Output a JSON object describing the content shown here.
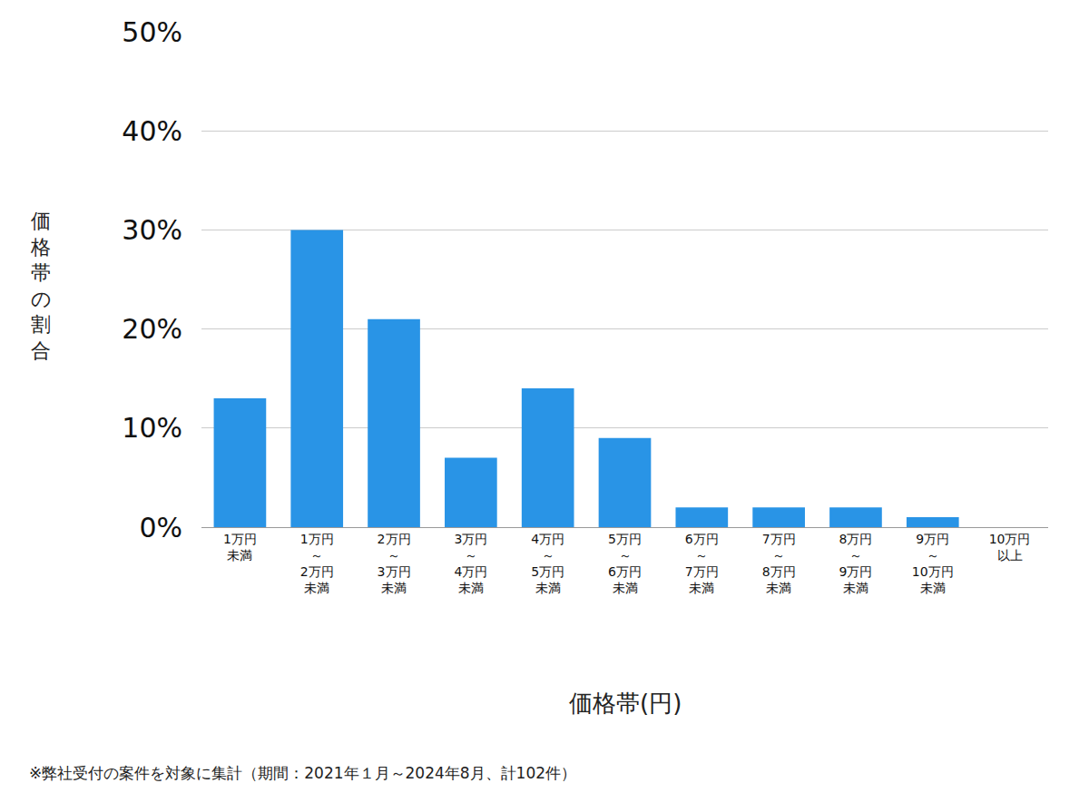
{
  "chart_data": {
    "type": "bar",
    "x_label": "価格帯(円)",
    "y_label": "価格帯の割合",
    "annotations": [
      "※弊社受付の案件を対象に集計（期間：2021年１月～2024年8月、計102件）"
    ],
    "categories": [
      "1万円\n未満",
      "1万円\n～\n2万円\n未満",
      "2万円\n～\n3万円\n未満",
      "3万円\n～\n4万円\n未満",
      "4万円\n～\n5万円\n未満",
      "5万円\n～\n6万円\n未満",
      "6万円\n～\n7万円\n未満",
      "7万円\n～\n8万円\n未満",
      "8万円\n～\n9万円\n未満",
      "9万円\n～\n10万円\n未満",
      "10万円\n以上"
    ],
    "values": [
      13,
      30,
      21,
      7,
      14,
      9,
      2,
      2,
      2,
      1,
      0
    ],
    "color": "#2994e6",
    "ylim": [
      0,
      50
    ],
    "yticks": [
      {
        "value": 0,
        "label": "0%"
      },
      {
        "value": 10,
        "label": "10%"
      },
      {
        "value": 20,
        "label": "20%"
      },
      {
        "value": 30,
        "label": "30%"
      },
      {
        "value": 40,
        "label": "40%"
      },
      {
        "value": 50,
        "label": "50%"
      }
    ],
    "grid": true
  }
}
